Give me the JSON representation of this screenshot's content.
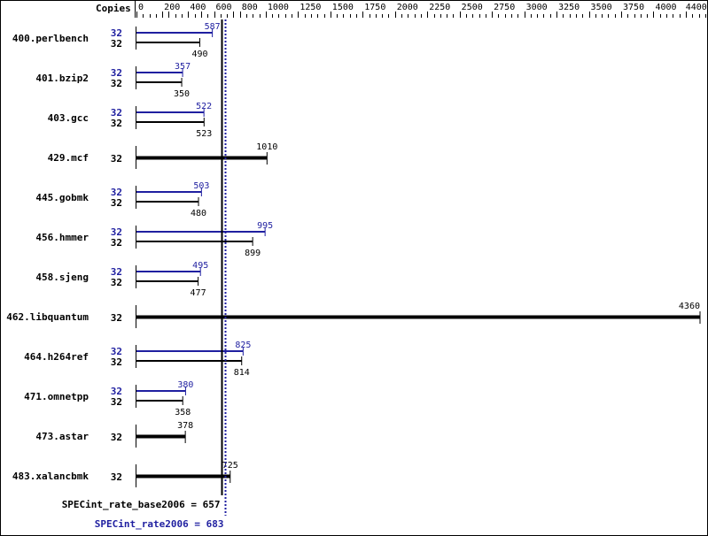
{
  "chart_data": {
    "type": "bar",
    "orientation": "horizontal",
    "header_label": "Copies",
    "xlim": [
      0,
      4400
    ],
    "tick_labels": [
      "0",
      "200",
      "400",
      "600",
      "800",
      "1000",
      "1250",
      "1500",
      "1750",
      "2000",
      "2250",
      "2500",
      "2750",
      "3000",
      "3250",
      "3500",
      "3750",
      "4000",
      "4400"
    ],
    "colors": {
      "peak": "#1f1fa0",
      "base": "#000000"
    },
    "benchmarks": [
      {
        "name": "400.perlbench",
        "peak_copies": "32",
        "peak": 587,
        "base_copies": "32",
        "base": 490
      },
      {
        "name": "401.bzip2",
        "peak_copies": "32",
        "peak": 357,
        "base_copies": "32",
        "base": 350
      },
      {
        "name": "403.gcc",
        "peak_copies": "32",
        "peak": 522,
        "base_copies": "32",
        "base": 523
      },
      {
        "name": "429.mcf",
        "copies": "32",
        "value": 1010
      },
      {
        "name": "445.gobmk",
        "peak_copies": "32",
        "peak": 503,
        "base_copies": "32",
        "base": 480
      },
      {
        "name": "456.hmmer",
        "peak_copies": "32",
        "peak": 995,
        "base_copies": "32",
        "base": 899
      },
      {
        "name": "458.sjeng",
        "peak_copies": "32",
        "peak": 495,
        "base_copies": "32",
        "base": 477
      },
      {
        "name": "462.libquantum",
        "copies": "32",
        "value": 4360
      },
      {
        "name": "464.h264ref",
        "peak_copies": "32",
        "peak": 825,
        "base_copies": "32",
        "base": 814
      },
      {
        "name": "471.omnetpp",
        "peak_copies": "32",
        "peak": 380,
        "base_copies": "32",
        "base": 358
      },
      {
        "name": "473.astar",
        "copies": "32",
        "value": 378
      },
      {
        "name": "483.xalancbmk",
        "copies": "32",
        "value": 725
      }
    ],
    "base_summary": {
      "label": "SPECint_rate_base2006 = 657",
      "value": 657
    },
    "peak_summary": {
      "label": "SPECint_rate2006 = 683",
      "value": 683
    }
  }
}
